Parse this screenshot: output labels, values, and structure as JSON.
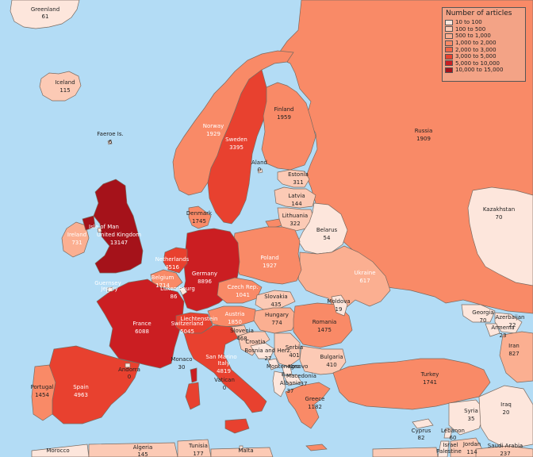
{
  "colors": {
    "sea": "#b3dcf5",
    "c1": "#fde6dc",
    "c2": "#fccab5",
    "c3": "#fbaf91",
    "c4": "#f98a67",
    "c5": "#f26447",
    "c6": "#e8412f",
    "c7": "#cb1e22",
    "c8": "#a5121a"
  },
  "legend": {
    "title": "Number of articles",
    "items": [
      {
        "label": "10 to 100",
        "color": "#fde6dc"
      },
      {
        "label": "100 to 500",
        "color": "#fccab5"
      },
      {
        "label": "500 to 1,000",
        "color": "#fbaf91"
      },
      {
        "label": "1,000 to 2,000",
        "color": "#f98a67"
      },
      {
        "label": "2,000 to 3,000",
        "color": "#f26447"
      },
      {
        "label": "3,000 to 5,000",
        "color": "#e8412f"
      },
      {
        "label": "5,000 to 10,000",
        "color": "#cb1e22"
      },
      {
        "label": "10,000 to 15,000",
        "color": "#a5121a"
      }
    ]
  },
  "countries": [
    {
      "key": "greenland",
      "name": "Greenland",
      "value": "61"
    },
    {
      "key": "iceland",
      "name": "Iceland",
      "value": "115"
    },
    {
      "key": "faeroe",
      "name": "Faeroe Is.",
      "value": "6"
    },
    {
      "key": "norway",
      "name": "Norway",
      "value": "1929"
    },
    {
      "key": "sweden",
      "name": "Sweden",
      "value": "3395"
    },
    {
      "key": "finland",
      "name": "Finland",
      "value": "1959"
    },
    {
      "key": "aland",
      "name": "Aland",
      "value": "0"
    },
    {
      "key": "russia",
      "name": "Russia",
      "value": "1909"
    },
    {
      "key": "estonia",
      "name": "Estonia",
      "value": "311"
    },
    {
      "key": "latvia",
      "name": "Latvia",
      "value": "144"
    },
    {
      "key": "lithuania",
      "name": "Lithuania",
      "value": "322"
    },
    {
      "key": "belarus",
      "name": "Belarus",
      "value": "54"
    },
    {
      "key": "kazakhstan",
      "name": "Kazakhstan",
      "value": "70"
    },
    {
      "key": "denmark",
      "name": "Denmark",
      "value": "1745"
    },
    {
      "key": "isleofman",
      "name": "Isle of Man",
      "value": ""
    },
    {
      "key": "ireland",
      "name": "Ireland",
      "value": "731"
    },
    {
      "key": "uk",
      "name": "United Kingdom",
      "value": "13147"
    },
    {
      "key": "netherlands",
      "name": "Netherlands",
      "value": "4516"
    },
    {
      "key": "belgium",
      "name": "Belgium",
      "value": "1714"
    },
    {
      "key": "luxembourg",
      "name": "Luxembourg",
      "value": "86"
    },
    {
      "key": "germany",
      "name": "Germany",
      "value": "8896"
    },
    {
      "key": "poland",
      "name": "Poland",
      "value": "1927"
    },
    {
      "key": "ukraine",
      "name": "Ukraine",
      "value": "617"
    },
    {
      "key": "guernsey",
      "name": "Guernsey",
      "value": "0"
    },
    {
      "key": "jersey",
      "name": "Jersey",
      "value": ""
    },
    {
      "key": "czech",
      "name": "Czech Rep.",
      "value": "1041"
    },
    {
      "key": "slovakia",
      "name": "Slovakia",
      "value": "435"
    },
    {
      "key": "moldova",
      "name": "Moldova",
      "value": "19"
    },
    {
      "key": "france",
      "name": "France",
      "value": "6088"
    },
    {
      "key": "switzerland",
      "name": "Switzerland",
      "value": "5045"
    },
    {
      "key": "liechtenstein",
      "name": "Liechtenstein",
      "value": ""
    },
    {
      "key": "austria",
      "name": "Austria",
      "value": "1850"
    },
    {
      "key": "hungary",
      "name": "Hungary",
      "value": "774"
    },
    {
      "key": "romania",
      "name": "Romania",
      "value": "1475"
    },
    {
      "key": "slovenia",
      "name": "Slovenia",
      "value": "468"
    },
    {
      "key": "croatia",
      "name": "Croatia",
      "value": ""
    },
    {
      "key": "bosnia",
      "name": "Bosnia and Herz.",
      "value": "27"
    },
    {
      "key": "serbia",
      "name": "Serbia",
      "value": "401"
    },
    {
      "key": "montenegro",
      "name": "Montenegro",
      "value": "8"
    },
    {
      "key": "kosovo",
      "name": "Kosovo",
      "value": ""
    },
    {
      "key": "macedonia",
      "name": "Macedonia",
      "value": "37"
    },
    {
      "key": "albania",
      "name": "Albania",
      "value": "37"
    },
    {
      "key": "bulgaria",
      "name": "Bulgaria",
      "value": "410"
    },
    {
      "key": "monaco",
      "name": "Monaco",
      "value": "30"
    },
    {
      "key": "sanmarino",
      "name": "San Marino",
      "value": ""
    },
    {
      "key": "italy",
      "name": "Italy",
      "value": "4819"
    },
    {
      "key": "vatican",
      "name": "Vatican",
      "value": "0"
    },
    {
      "key": "andorra",
      "name": "Andorra",
      "value": "0"
    },
    {
      "key": "portugal",
      "name": "Portugal",
      "value": "1454"
    },
    {
      "key": "spain",
      "name": "Spain",
      "value": "4963"
    },
    {
      "key": "greece",
      "name": "Greece",
      "value": "1182"
    },
    {
      "key": "turkey",
      "name": "Turkey",
      "value": "1741"
    },
    {
      "key": "georgia",
      "name": "Georgia",
      "value": "70"
    },
    {
      "key": "azerbaijan",
      "name": "Azerbaijan",
      "value": "22"
    },
    {
      "key": "armenia",
      "name": "Armenia",
      "value": "23"
    },
    {
      "key": "iran",
      "name": "Iran",
      "value": "827"
    },
    {
      "key": "syria",
      "name": "Syria",
      "value": "35"
    },
    {
      "key": "iraq",
      "name": "Iraq",
      "value": "20"
    },
    {
      "key": "cyprus",
      "name": "Cyprus",
      "value": "82"
    },
    {
      "key": "lebanon",
      "name": "Lebanon",
      "value": "60"
    },
    {
      "key": "israel",
      "name": "Israel",
      "value": ""
    },
    {
      "key": "palestine",
      "name": "Palestine",
      "value": ""
    },
    {
      "key": "jordan",
      "name": "Jordan",
      "value": "114"
    },
    {
      "key": "saudi",
      "name": "Saudi Arabia",
      "value": "237"
    },
    {
      "key": "morocco",
      "name": "Morocco",
      "value": ""
    },
    {
      "key": "algeria",
      "name": "Algeria",
      "value": "145"
    },
    {
      "key": "tunisia",
      "name": "Tunisia",
      "value": "177"
    },
    {
      "key": "malta",
      "name": "Malta",
      "value": ""
    }
  ]
}
